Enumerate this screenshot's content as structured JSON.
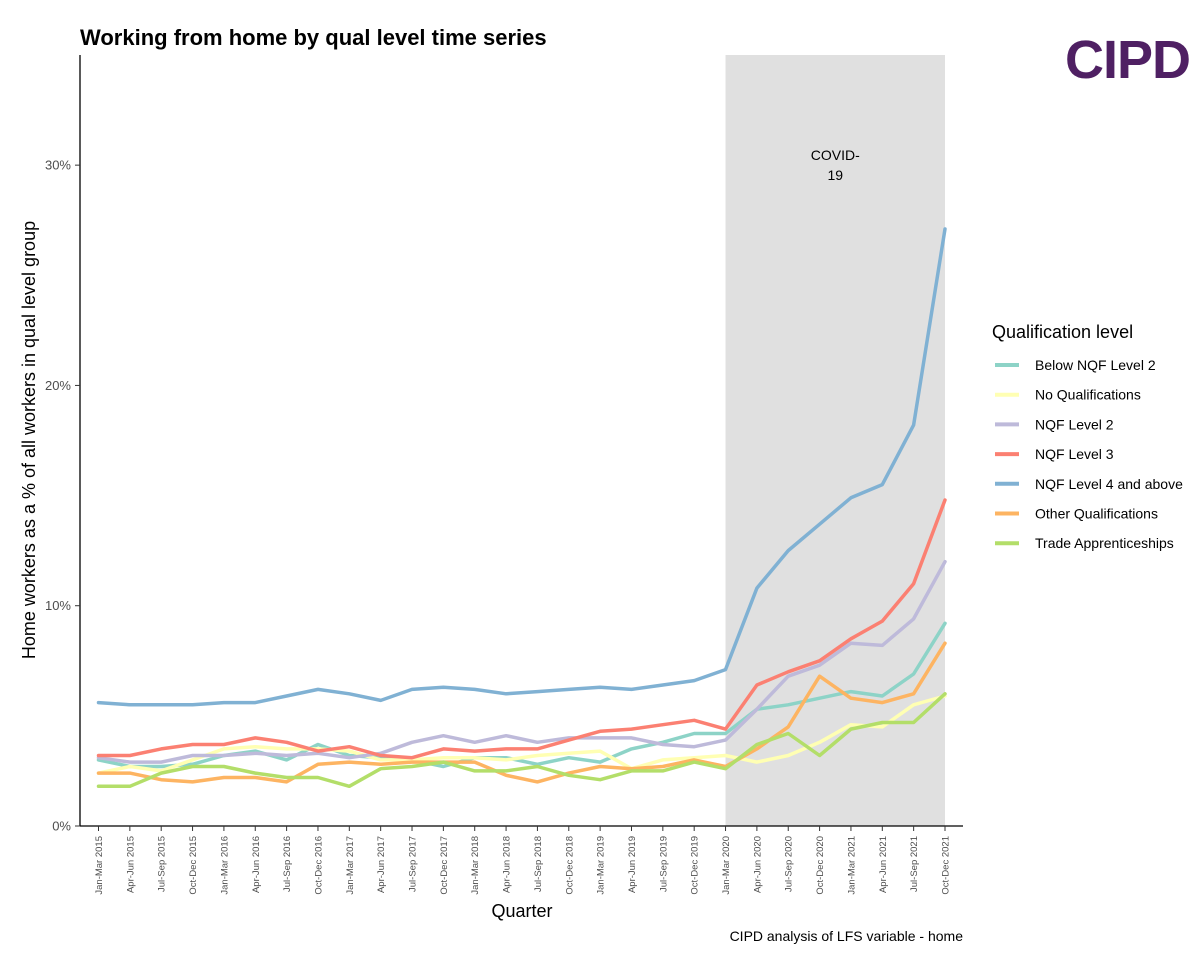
{
  "brand": {
    "logo_text": "CIPD",
    "logo_color": "#4f2063"
  },
  "chart_data": {
    "type": "line",
    "title": "Working from home by qual level time series",
    "xlabel": "Quarter",
    "ylabel": "Home workers as a % of all workers in qual level group",
    "caption": "CIPD analysis of LFS variable - home",
    "ylim": [
      0,
      35
    ],
    "y_ticks": [
      0,
      10,
      20,
      30
    ],
    "y_tick_labels": [
      "0%",
      "10%",
      "20%",
      "30%"
    ],
    "grid": false,
    "legend": {
      "title": "Qualification level",
      "placement": "right"
    },
    "annotation": {
      "lines": [
        "COVID-",
        "19"
      ],
      "shade_from": "Jan-Mar 2020",
      "shade_to": "Oct-Dec 2021",
      "shade_color": "#e0e0e0"
    },
    "x": [
      "Jan-Mar 2015",
      "Apr-Jun 2015",
      "Jul-Sep 2015",
      "Oct-Dec 2015",
      "Jan-Mar 2016",
      "Apr-Jun 2016",
      "Jul-Sep 2016",
      "Oct-Dec 2016",
      "Jan-Mar 2017",
      "Apr-Jun 2017",
      "Jul-Sep 2017",
      "Oct-Dec 2017",
      "Jan-Mar 2018",
      "Apr-Jun 2018",
      "Jul-Sep 2018",
      "Oct-Dec 2018",
      "Jan-Mar 2019",
      "Apr-Jun 2019",
      "Jul-Sep 2019",
      "Oct-Dec 2019",
      "Jan-Mar 2020",
      "Apr-Jun 2020",
      "Jul-Sep 2020",
      "Oct-Dec 2020",
      "Jan-Mar 2021",
      "Apr-Jun 2021",
      "Jul-Sep 2021",
      "Oct-Dec 2021"
    ],
    "series": [
      {
        "name": "Below NQF Level 2",
        "color": "#8dd3c7",
        "values": [
          3.0,
          2.7,
          2.7,
          2.8,
          3.2,
          3.4,
          3.0,
          3.7,
          3.2,
          3.1,
          3.0,
          2.7,
          3.1,
          3.1,
          2.8,
          3.1,
          2.9,
          3.5,
          3.8,
          4.2,
          4.2,
          5.3,
          5.5,
          5.8,
          6.1,
          5.9,
          6.9,
          9.2
        ]
      },
      {
        "name": "No Qualifications",
        "color": "#ffffb3",
        "values": [
          2.4,
          2.7,
          2.5,
          3.0,
          3.5,
          3.6,
          3.5,
          3.5,
          3.4,
          3.0,
          3.0,
          3.1,
          3.1,
          3.0,
          3.2,
          3.3,
          3.4,
          2.6,
          3.0,
          3.1,
          3.2,
          2.9,
          3.2,
          3.8,
          4.6,
          4.5,
          5.5,
          5.9
        ]
      },
      {
        "name": "NQF Level 2",
        "color": "#bebada",
        "values": [
          3.1,
          2.9,
          2.9,
          3.2,
          3.2,
          3.3,
          3.2,
          3.3,
          3.1,
          3.3,
          3.8,
          4.1,
          3.8,
          4.1,
          3.8,
          4.0,
          4.0,
          4.0,
          3.7,
          3.6,
          3.9,
          5.3,
          6.8,
          7.3,
          8.3,
          8.2,
          9.4,
          12.0
        ]
      },
      {
        "name": "NQF Level 3",
        "color": "#fb8072",
        "values": [
          3.2,
          3.2,
          3.5,
          3.7,
          3.7,
          4.0,
          3.8,
          3.4,
          3.6,
          3.2,
          3.1,
          3.5,
          3.4,
          3.5,
          3.5,
          3.9,
          4.3,
          4.4,
          4.6,
          4.8,
          4.4,
          6.4,
          7.0,
          7.5,
          8.5,
          9.3,
          11.0,
          14.8
        ]
      },
      {
        "name": "NQF Level 4 and above",
        "color": "#80b1d3",
        "values": [
          5.6,
          5.5,
          5.5,
          5.5,
          5.6,
          5.6,
          5.9,
          6.2,
          6.0,
          5.7,
          6.2,
          6.3,
          6.2,
          6.0,
          6.1,
          6.2,
          6.3,
          6.2,
          6.4,
          6.6,
          7.1,
          10.8,
          12.5,
          13.7,
          14.9,
          15.5,
          18.2,
          27.1
        ]
      },
      {
        "name": "Other Qualifications",
        "color": "#fdb462",
        "values": [
          2.4,
          2.4,
          2.1,
          2.0,
          2.2,
          2.2,
          2.0,
          2.8,
          2.9,
          2.8,
          2.9,
          2.9,
          2.9,
          2.3,
          2.0,
          2.4,
          2.7,
          2.6,
          2.7,
          3.0,
          2.7,
          3.5,
          4.5,
          6.8,
          5.8,
          5.6,
          6.0,
          8.3
        ]
      },
      {
        "name": "Trade Apprenticeships",
        "color": "#b3de69",
        "values": [
          1.8,
          1.8,
          2.4,
          2.7,
          2.7,
          2.4,
          2.2,
          2.2,
          1.8,
          2.6,
          2.7,
          2.9,
          2.5,
          2.5,
          2.7,
          2.3,
          2.1,
          2.5,
          2.5,
          2.9,
          2.6,
          3.7,
          4.2,
          3.2,
          4.4,
          4.7,
          4.7,
          6.0
        ]
      }
    ]
  }
}
